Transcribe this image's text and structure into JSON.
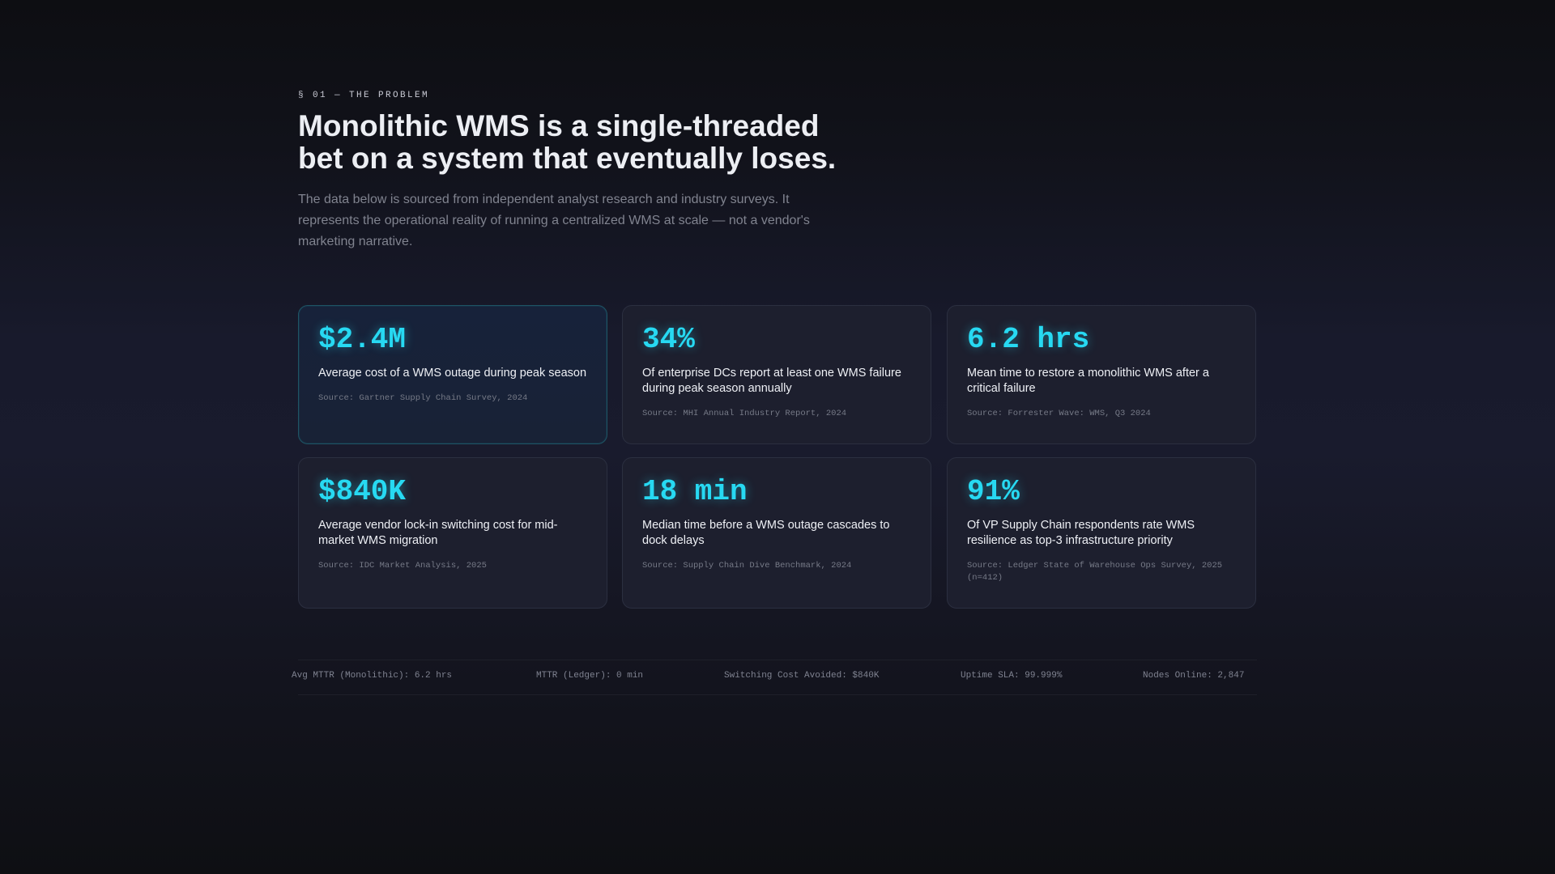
{
  "section": {
    "eyebrow": "§ 01 — THE PROBLEM",
    "headline_line1": "Monolithic WMS is a single-threaded",
    "headline_line2": "bet on a system that eventually loses.",
    "lede": "The data below is sourced from independent analyst research and industry surveys. It represents the operational reality of running a centralized WMS at scale — not a vendor's marketing narrative."
  },
  "stats": [
    {
      "value": "$2.4M",
      "description": "Average cost of a WMS outage during peak season",
      "source": "Source: Gartner Supply Chain Survey, 2024"
    },
    {
      "value": "34%",
      "description": "Of enterprise DCs report at least one WMS failure during peak season annually",
      "source": "Source: MHI Annual Industry Report, 2024"
    },
    {
      "value": "6.2 hrs",
      "description": "Mean time to restore a monolithic WMS after a critical failure",
      "source": "Source: Forrester Wave: WMS, Q3 2024"
    },
    {
      "value": "$840K",
      "description": "Average vendor lock-in switching cost for mid-market WMS migration",
      "source": "Source: IDC Market Analysis, 2025"
    },
    {
      "value": "18 min",
      "description": "Median time before a WMS outage cascades to dock delays",
      "source": "Source: Supply Chain Dive Benchmark, 2024"
    },
    {
      "value": "91%",
      "description": "Of VP Supply Chain respondents rate WMS resilience as top-3 infrastructure priority",
      "source": "Source: Ledger State of Warehouse Ops Survey, 2025 (n=412)"
    }
  ],
  "ticker": [
    "Avg MTTR (Monolithic): 6.2 hrs",
    "MTTR (Ledger): 0 min",
    "Switching Cost Avoided: $840K",
    "Uptime SLA: 99.999%",
    "Nodes Online: 2,847"
  ],
  "colors": {
    "accent": "#27d9f2",
    "card_bg": "#1d1f2e",
    "card_border": "#2b2f40",
    "highlight_border": "#1f5565"
  }
}
